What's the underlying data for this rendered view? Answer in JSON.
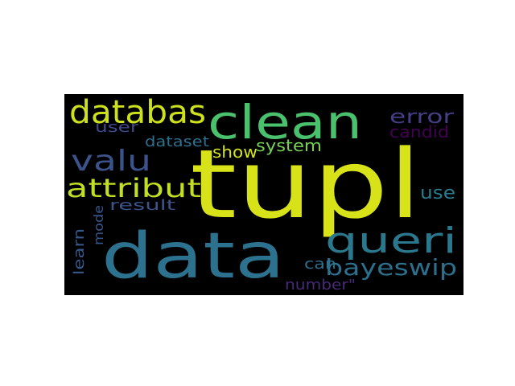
{
  "figure": {
    "background": "#ffffff",
    "canvas_background": "#000000"
  },
  "words": [
    {
      "text": "tupl",
      "color": "#d8e219"
    },
    {
      "text": "data",
      "color": "#2c728e"
    },
    {
      "text": "clean",
      "color": "#4ac16d"
    },
    {
      "text": "databas",
      "color": "#cde11d"
    },
    {
      "text": "queri",
      "color": "#2a788e"
    },
    {
      "text": "valu",
      "color": "#3b528b"
    },
    {
      "text": "attribut",
      "color": "#c2df23"
    },
    {
      "text": "bayeswip",
      "color": "#2d708e"
    },
    {
      "text": "error",
      "color": "#433e85"
    },
    {
      "text": "candid",
      "color": "#440154"
    },
    {
      "text": "user",
      "color": "#3e4a89"
    },
    {
      "text": "dataset",
      "color": "#2d708e"
    },
    {
      "text": "show",
      "color": "#d2e21b"
    },
    {
      "text": "system",
      "color": "#75d054"
    },
    {
      "text": "use",
      "color": "#287c8e"
    },
    {
      "text": "result",
      "color": "#3b528b"
    },
    {
      "text": "mode",
      "color": "#39568c"
    },
    {
      "text": "learn",
      "color": "#38598c"
    },
    {
      "text": "can",
      "color": "#2c718e"
    },
    {
      "text": "number\"",
      "color": "#482878"
    }
  ]
}
